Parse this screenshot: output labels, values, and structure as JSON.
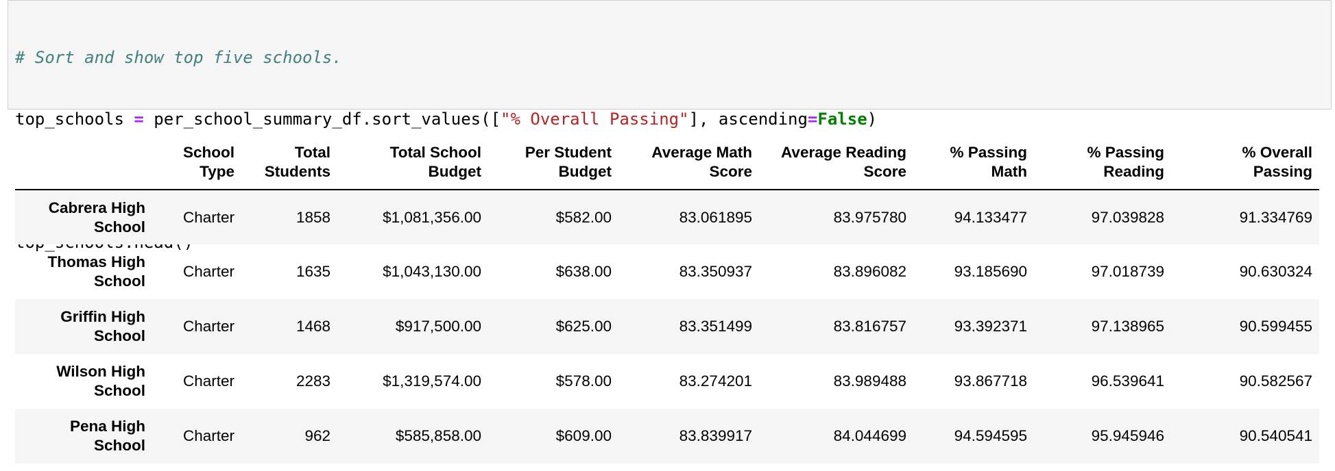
{
  "code": {
    "comment": "# Sort and show top five schools.",
    "line2": {
      "var": "top_schools ",
      "eq": "=",
      "call_pre": " per_school_summary_df.sort_values([",
      "string": "\"% Overall Passing\"",
      "call_mid": "], ascending",
      "eq2": "=",
      "kw": "False",
      "call_end": ")"
    },
    "line4": "top_schools.head()"
  },
  "table": {
    "columns": [
      {
        "line1": "School",
        "line2": "Type"
      },
      {
        "line1": "Total",
        "line2": "Students"
      },
      {
        "line1": "Total School",
        "line2": "Budget"
      },
      {
        "line1": "Per Student",
        "line2": "Budget"
      },
      {
        "line1": "Average Math",
        "line2": "Score"
      },
      {
        "line1": "Average Reading",
        "line2": "Score"
      },
      {
        "line1": "% Passing",
        "line2": "Math"
      },
      {
        "line1": "% Passing",
        "line2": "Reading"
      },
      {
        "line1": "% Overall",
        "line2": "Passing"
      }
    ],
    "rows": [
      {
        "index1": "Cabrera High",
        "index2": "School",
        "cells": [
          "Charter",
          "1858",
          "$1,081,356.00",
          "$582.00",
          "83.061895",
          "83.975780",
          "94.133477",
          "97.039828",
          "91.334769"
        ]
      },
      {
        "index1": "Thomas High",
        "index2": "School",
        "cells": [
          "Charter",
          "1635",
          "$1,043,130.00",
          "$638.00",
          "83.350937",
          "83.896082",
          "93.185690",
          "97.018739",
          "90.630324"
        ]
      },
      {
        "index1": "Griffin High",
        "index2": "School",
        "cells": [
          "Charter",
          "1468",
          "$917,500.00",
          "$625.00",
          "83.351499",
          "83.816757",
          "93.392371",
          "97.138965",
          "90.599455"
        ]
      },
      {
        "index1": "Wilson High",
        "index2": "School",
        "cells": [
          "Charter",
          "2283",
          "$1,319,574.00",
          "$578.00",
          "83.274201",
          "83.989488",
          "93.867718",
          "96.539641",
          "90.582567"
        ]
      },
      {
        "index1": "Pena High",
        "index2": "School",
        "cells": [
          "Charter",
          "962",
          "$585,858.00",
          "$609.00",
          "83.839917",
          "84.044699",
          "94.594595",
          "95.945946",
          "90.540541"
        ]
      }
    ]
  }
}
